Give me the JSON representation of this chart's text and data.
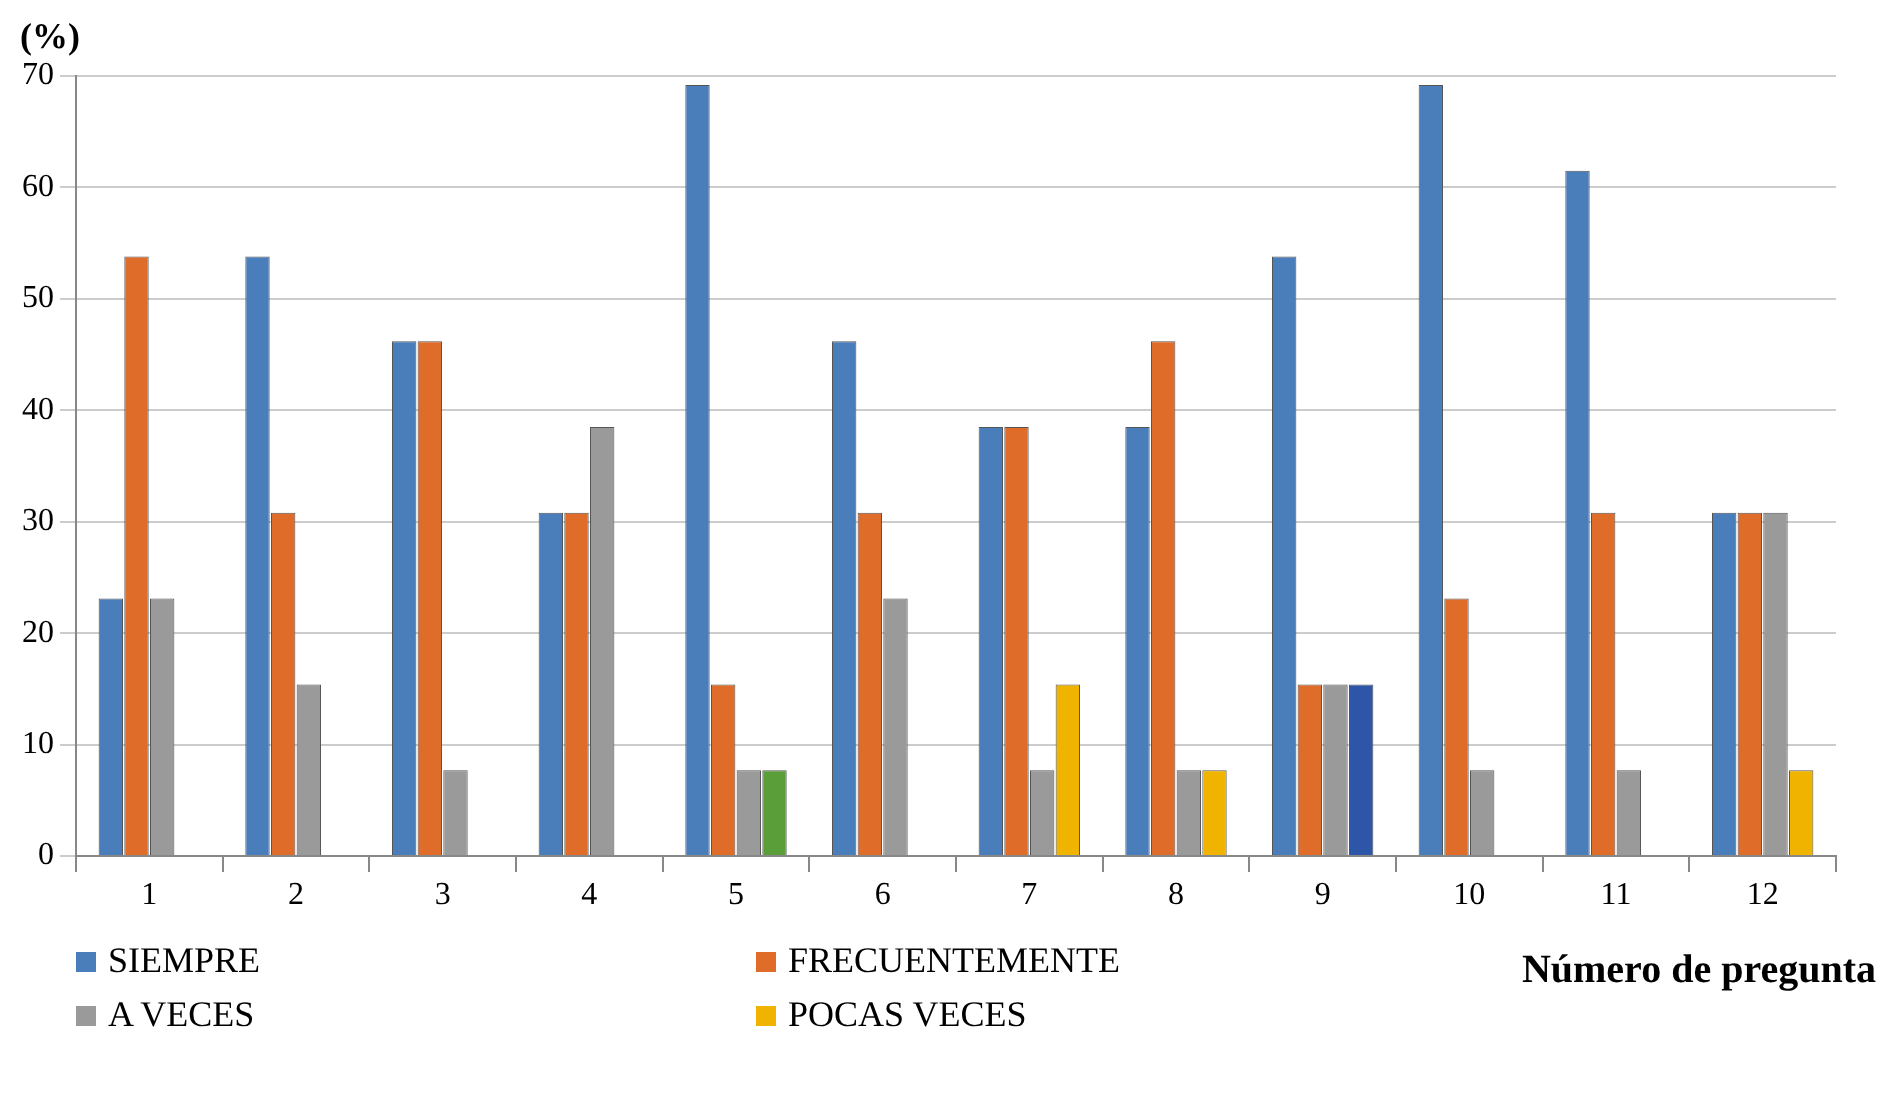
{
  "chart_data": {
    "type": "bar",
    "ylabel": "(%)",
    "xlabel": "Número de pregunta",
    "categories": [
      "1",
      "2",
      "3",
      "4",
      "5",
      "6",
      "7",
      "8",
      "9",
      "10",
      "11",
      "12"
    ],
    "series": [
      {
        "name": "SIEMPRE",
        "color": "#4a7ebb",
        "values": [
          23.1,
          53.8,
          46.2,
          30.8,
          69.2,
          46.2,
          38.5,
          38.5,
          53.8,
          69.2,
          61.5,
          30.8
        ]
      },
      {
        "name": "FRECUENTEMENTE",
        "color": "#e06c2a",
        "values": [
          53.8,
          30.8,
          46.2,
          30.8,
          15.4,
          30.8,
          38.5,
          46.2,
          15.4,
          23.1,
          30.8,
          30.8
        ]
      },
      {
        "name": "A VECES",
        "color": "#9a9a9a",
        "values": [
          23.1,
          15.4,
          7.7,
          38.5,
          7.7,
          23.1,
          7.7,
          7.7,
          15.4,
          7.7,
          7.7,
          30.8
        ]
      },
      {
        "name": "POCAS VECES",
        "color": "#f0b400",
        "colors": [
          "#f0b400",
          "#f0b400",
          "#f0b400",
          "#f0b400",
          "#5a9e3a",
          "#f0b400",
          "#f0b400",
          "#f0b400",
          "#2e56a8",
          "#f0b400",
          "#f0b400",
          "#f0b400"
        ],
        "values": [
          null,
          null,
          null,
          null,
          7.7,
          null,
          15.4,
          7.7,
          15.4,
          null,
          null,
          7.7
        ]
      }
    ],
    "ylim": [
      0,
      70
    ],
    "yticks": [
      0,
      10,
      20,
      30,
      40,
      50,
      60,
      70
    ],
    "grid": "y",
    "legend": "bottom"
  }
}
